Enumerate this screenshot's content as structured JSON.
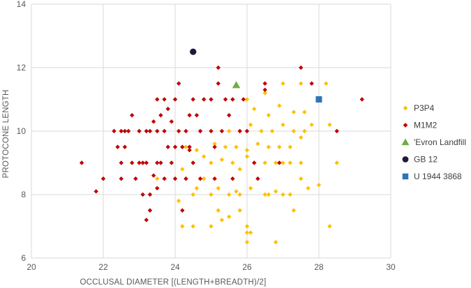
{
  "chart_data": {
    "type": "scatter",
    "title": "",
    "xlabel": "OCCLUSAL DIAMETER [(LENGTH+BREADTH)/2]",
    "ylabel": "PROTOCONE LENGTH",
    "xlim": [
      20,
      30
    ],
    "ylim": [
      6,
      14
    ],
    "xticks": [
      20,
      22,
      24,
      26,
      28,
      30
    ],
    "yticks": [
      6,
      8,
      10,
      12,
      14
    ],
    "grid": true,
    "legend_position": "right",
    "series": [
      {
        "name": "P3P4",
        "color": "#FFC000",
        "marker": "diamond",
        "points": [
          [
            24.2,
            7.0
          ],
          [
            24.5,
            7.0
          ],
          [
            25.0,
            7.0
          ],
          [
            25.2,
            7.5
          ],
          [
            25.5,
            7.3
          ],
          [
            25.3,
            7.2
          ],
          [
            25.8,
            7.5
          ],
          [
            26.0,
            7.0
          ],
          [
            26.0,
            6.8
          ],
          [
            26.0,
            6.5
          ],
          [
            26.1,
            6.8
          ],
          [
            27.3,
            7.5
          ],
          [
            28.3,
            7.0
          ],
          [
            26.8,
            6.5
          ],
          [
            24.5,
            8.0
          ],
          [
            24.6,
            8.2
          ],
          [
            24.8,
            8.5
          ],
          [
            25.0,
            8.0
          ],
          [
            25.2,
            8.2
          ],
          [
            25.5,
            8.0
          ],
          [
            25.7,
            8.1
          ],
          [
            25.8,
            8.0
          ],
          [
            26.1,
            8.2
          ],
          [
            26.5,
            8.0
          ],
          [
            26.6,
            8.0
          ],
          [
            26.8,
            8.1
          ],
          [
            27.0,
            8.0
          ],
          [
            27.2,
            8.0
          ],
          [
            27.5,
            8.5
          ],
          [
            27.7,
            8.2
          ],
          [
            28.0,
            8.3
          ],
          [
            28.5,
            9.0
          ],
          [
            24.2,
            8.8
          ],
          [
            24.5,
            9.0
          ],
          [
            24.8,
            9.2
          ],
          [
            25.0,
            9.0
          ],
          [
            25.3,
            9.1
          ],
          [
            25.6,
            9.0
          ],
          [
            25.8,
            8.8
          ],
          [
            26.0,
            9.2
          ],
          [
            26.2,
            9.0
          ],
          [
            26.5,
            9.0
          ],
          [
            26.8,
            9.0
          ],
          [
            27.0,
            9.0
          ],
          [
            27.2,
            9.0
          ],
          [
            27.5,
            9.0
          ],
          [
            24.3,
            9.5
          ],
          [
            24.6,
            9.4
          ],
          [
            25.1,
            9.6
          ],
          [
            25.4,
            9.5
          ],
          [
            25.7,
            9.5
          ],
          [
            26.0,
            9.4
          ],
          [
            26.3,
            9.6
          ],
          [
            26.6,
            9.5
          ],
          [
            26.9,
            9.5
          ],
          [
            27.2,
            9.5
          ],
          [
            27.5,
            9.8
          ],
          [
            25.5,
            10.0
          ],
          [
            25.8,
            10.0
          ],
          [
            26.1,
            10.2
          ],
          [
            26.4,
            10.0
          ],
          [
            26.7,
            10.0
          ],
          [
            27.0,
            10.2
          ],
          [
            27.3,
            10.0
          ],
          [
            27.6,
            10.0
          ],
          [
            27.8,
            10.2
          ],
          [
            28.3,
            10.2
          ],
          [
            26.2,
            10.7
          ],
          [
            26.6,
            10.5
          ],
          [
            26.9,
            10.8
          ],
          [
            27.3,
            10.6
          ],
          [
            27.6,
            10.6
          ],
          [
            26.0,
            11.0
          ],
          [
            26.5,
            11.2
          ],
          [
            27.0,
            11.5
          ],
          [
            27.5,
            11.5
          ],
          [
            28.2,
            11.5
          ],
          [
            24.1,
            7.8
          ],
          [
            24.3,
            8.5
          ],
          [
            23.5,
            8.5
          ]
        ]
      },
      {
        "name": "M1M2",
        "color": "#C00000",
        "marker": "diamond",
        "points": [
          [
            21.4,
            9.0
          ],
          [
            21.8,
            8.1
          ],
          [
            22.0,
            8.5
          ],
          [
            22.4,
            9.5
          ],
          [
            22.5,
            9.0
          ],
          [
            22.6,
            9.5
          ],
          [
            22.5,
            8.5
          ],
          [
            22.5,
            10.0
          ],
          [
            22.7,
            10.0
          ],
          [
            22.8,
            10.5
          ],
          [
            22.8,
            9.0
          ],
          [
            22.9,
            8.5
          ],
          [
            23.0,
            9.0
          ],
          [
            23.1,
            9.0
          ],
          [
            23.0,
            10.0
          ],
          [
            23.2,
            10.0
          ],
          [
            23.3,
            10.0
          ],
          [
            23.2,
            9.0
          ],
          [
            23.1,
            8.0
          ],
          [
            23.2,
            7.2
          ],
          [
            23.3,
            8.0
          ],
          [
            23.3,
            7.5
          ],
          [
            23.5,
            8.2
          ],
          [
            23.5,
            9.0
          ],
          [
            23.6,
            9.0
          ],
          [
            23.4,
            8.6
          ],
          [
            23.5,
            10.0
          ],
          [
            23.6,
            10.5
          ],
          [
            23.5,
            11.0
          ],
          [
            23.7,
            8.5
          ],
          [
            23.7,
            10.0
          ],
          [
            23.7,
            11.0
          ],
          [
            23.8,
            9.5
          ],
          [
            23.8,
            10.7
          ],
          [
            23.9,
            9.0
          ],
          [
            23.9,
            10.3
          ],
          [
            24.0,
            9.5
          ],
          [
            24.0,
            8.5
          ],
          [
            24.0,
            11.0
          ],
          [
            24.1,
            10.0
          ],
          [
            24.1,
            11.5
          ],
          [
            24.2,
            9.5
          ],
          [
            24.2,
            7.5
          ],
          [
            24.3,
            8.5
          ],
          [
            24.3,
            10.0
          ],
          [
            24.4,
            9.5
          ],
          [
            24.4,
            10.5
          ],
          [
            24.4,
            9.4
          ],
          [
            24.5,
            9.0
          ],
          [
            24.5,
            11.0
          ],
          [
            24.6,
            10.5
          ],
          [
            24.7,
            8.5
          ],
          [
            24.7,
            10.0
          ],
          [
            24.8,
            11.0
          ],
          [
            25.0,
            11.0
          ],
          [
            25.0,
            10.0
          ],
          [
            25.1,
            9.5
          ],
          [
            25.1,
            8.5
          ],
          [
            25.2,
            11.5
          ],
          [
            25.2,
            12.0
          ],
          [
            25.3,
            10.0
          ],
          [
            25.4,
            11.0
          ],
          [
            25.5,
            10.5
          ],
          [
            25.6,
            8.5
          ],
          [
            25.6,
            11.0
          ],
          [
            25.8,
            10.0
          ],
          [
            25.9,
            11.0
          ],
          [
            26.0,
            10.0
          ],
          [
            26.2,
            9.0
          ],
          [
            26.3,
            8.5
          ],
          [
            26.5,
            11.3
          ],
          [
            26.5,
            11.5
          ],
          [
            26.9,
            9.0
          ],
          [
            27.5,
            12.0
          ],
          [
            27.8,
            11.5
          ],
          [
            28.5,
            10.0
          ],
          [
            29.2,
            11.0
          ],
          [
            22.3,
            10.0
          ],
          [
            22.6,
            10.0
          ],
          [
            23.4,
            10.3
          ]
        ]
      },
      {
        "name": "'Evron Landfill",
        "color": "#70AD47",
        "marker": "triangle",
        "points": [
          [
            25.7,
            11.45
          ]
        ]
      },
      {
        "name": "GB 12",
        "color": "#1F1A3C",
        "marker": "circle",
        "points": [
          [
            24.5,
            12.5
          ]
        ]
      },
      {
        "name": "U 1944 3868",
        "color": "#2E75B6",
        "marker": "square",
        "points": [
          [
            28.0,
            11.0
          ]
        ]
      }
    ]
  }
}
